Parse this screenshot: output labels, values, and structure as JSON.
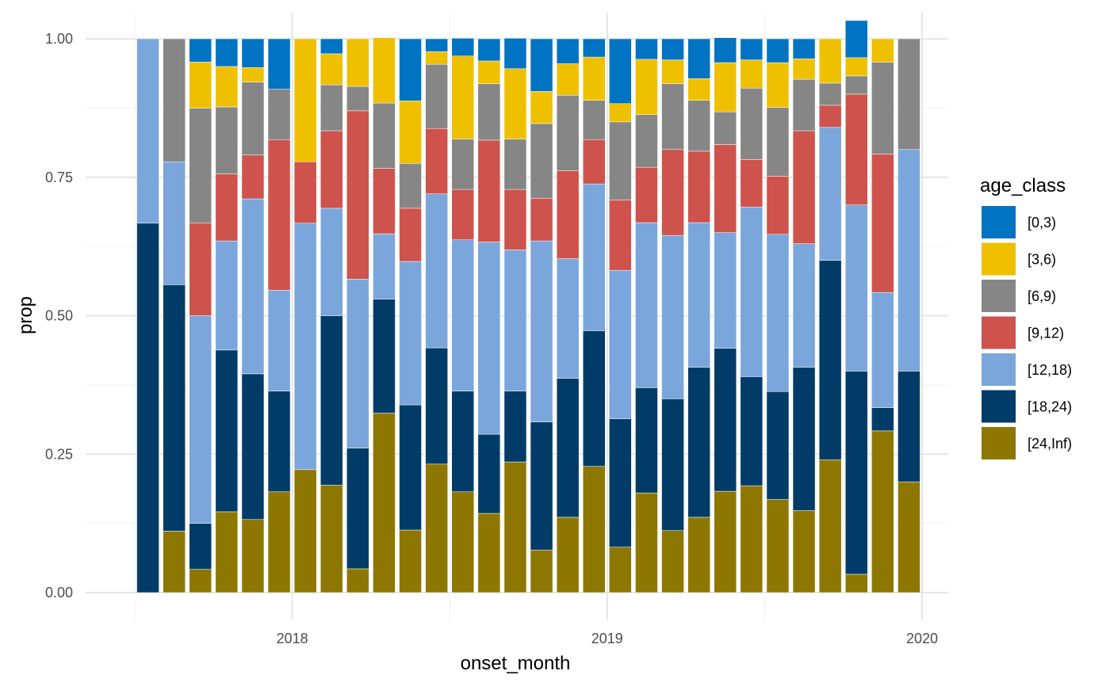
{
  "chart_data": {
    "type": "bar",
    "stacked": true,
    "xlabel": "onset_month",
    "ylabel": "prop",
    "ylim": [
      0,
      1
    ],
    "y_ticks": [
      "0.00",
      "0.25",
      "0.50",
      "0.75",
      "1.00"
    ],
    "x_ticks": [
      "2018",
      "2019",
      "2020"
    ],
    "legend": {
      "title": "age_class",
      "placement": "right"
    },
    "grid": true,
    "categories": [
      "2017-07",
      "2017-08",
      "2017-09",
      "2017-10",
      "2017-11",
      "2017-12",
      "2018-01",
      "2018-02",
      "2018-03",
      "2018-04",
      "2018-05",
      "2018-06",
      "2018-07",
      "2018-08",
      "2018-09",
      "2018-10",
      "2018-11",
      "2018-12",
      "2019-01",
      "2019-02",
      "2019-03",
      "2019-04",
      "2019-05",
      "2019-06",
      "2019-07",
      "2019-08",
      "2019-09",
      "2019-10",
      "2019-11",
      "2019-12"
    ],
    "series": [
      {
        "name": "[24,Inf)",
        "color": "#8E7700",
        "values": [
          0,
          0.111,
          0.042,
          0.146,
          0.132,
          0.182,
          0.222,
          0.194,
          0.043,
          0.324,
          0.113,
          0.232,
          0.182,
          0.143,
          0.236,
          0.077,
          0.136,
          0.228,
          0.082,
          0.18,
          0.112,
          0.136,
          0.183,
          0.193,
          0.168,
          0.148,
          0.24,
          0.033,
          0.292,
          0.2
        ]
      },
      {
        "name": "[18,24)",
        "color": "#003C67",
        "values": [
          0.667,
          0.445,
          0.083,
          0.292,
          0.263,
          0.182,
          0,
          0.306,
          0.218,
          0.206,
          0.226,
          0.21,
          0.182,
          0.143,
          0.128,
          0.231,
          0.251,
          0.245,
          0.232,
          0.19,
          0.238,
          0.271,
          0.258,
          0.197,
          0.195,
          0.259,
          0.36,
          0.367,
          0.042,
          0.2
        ]
      },
      {
        "name": "[12,18)",
        "color": "#7AA6DC",
        "values": [
          0.333,
          0.222,
          0.375,
          0.197,
          0.316,
          0.182,
          0.445,
          0.194,
          0.305,
          0.118,
          0.259,
          0.278,
          0.273,
          0.347,
          0.255,
          0.327,
          0.216,
          0.265,
          0.268,
          0.298,
          0.295,
          0.261,
          0.209,
          0.306,
          0.284,
          0.223,
          0.24,
          0.3,
          0.208,
          0.4
        ]
      },
      {
        "name": "[9,12)",
        "color": "#CD534C",
        "values": [
          0,
          0,
          0.167,
          0.121,
          0.079,
          0.272,
          0.111,
          0.14,
          0.304,
          0.118,
          0.096,
          0.118,
          0.091,
          0.184,
          0.109,
          0.077,
          0.159,
          0.08,
          0.127,
          0.1,
          0.155,
          0.129,
          0.159,
          0.086,
          0.105,
          0.204,
          0.04,
          0.2,
          0.25,
          0
        ]
      },
      {
        "name": "[6,9)",
        "color": "#868686",
        "values": [
          0,
          0.222,
          0.208,
          0.121,
          0.132,
          0.091,
          0,
          0.083,
          0.044,
          0.118,
          0.081,
          0.116,
          0.091,
          0.102,
          0.091,
          0.135,
          0.136,
          0.071,
          0.141,
          0.095,
          0.119,
          0.092,
          0.059,
          0.129,
          0.124,
          0.093,
          0.04,
          0.033,
          0.166,
          0.2
        ]
      },
      {
        "name": "[3,6)",
        "color": "#EFC000",
        "values": [
          0,
          0,
          0.083,
          0.073,
          0.026,
          0,
          0.222,
          0.056,
          0.086,
          0.118,
          0.113,
          0.023,
          0.15,
          0.041,
          0.127,
          0.058,
          0.057,
          0.078,
          0.033,
          0.1,
          0.043,
          0.039,
          0.089,
          0.051,
          0.081,
          0.037,
          0.08,
          0.033,
          0.042,
          0
        ]
      },
      {
        "name": "[0,3)",
        "color": "#0073C2",
        "values": [
          0,
          0,
          0.042,
          0.05,
          0.052,
          0.091,
          0,
          0.027,
          0,
          0,
          0.112,
          0.023,
          0.032,
          0.04,
          0.055,
          0.095,
          0.045,
          0.033,
          0.117,
          0.037,
          0.038,
          0.072,
          0.045,
          0.038,
          0.043,
          0.036,
          0,
          0.067,
          0,
          0
        ]
      }
    ]
  }
}
